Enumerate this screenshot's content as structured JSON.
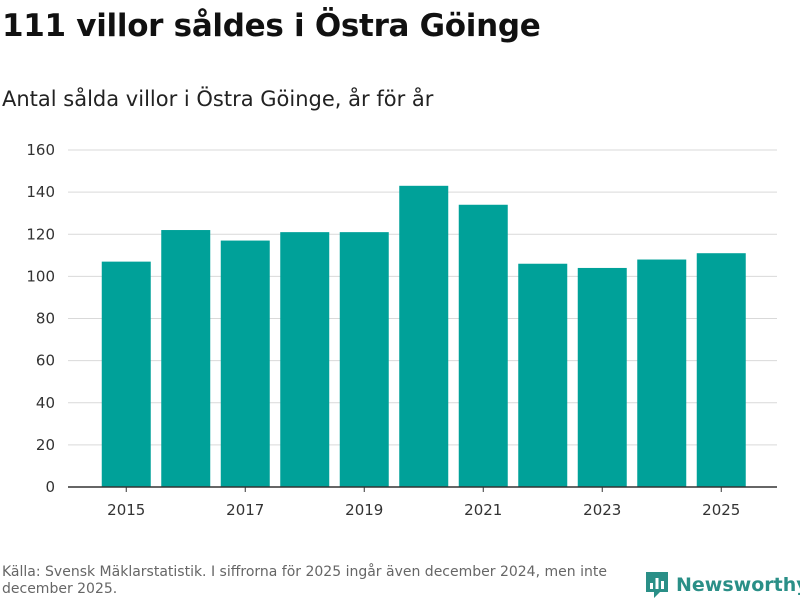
{
  "header": {
    "title": "111 villor såldes i Östra Göinge",
    "subtitle": "Antal sålda villor i Östra Göinge, år för år"
  },
  "footer": {
    "source": "Källa: Svensk Mäklarstatistik. I siffrorna för 2025 ingår även december 2024, men inte december 2025.",
    "brand": "Newsworthy"
  },
  "colors": {
    "bar": "#00a199",
    "brand": "#2a8f87"
  },
  "chart_data": {
    "type": "bar",
    "title": "Antal sålda villor i Östra Göinge, år för år",
    "xlabel": "",
    "ylabel": "",
    "categories": [
      "2015",
      "2016",
      "2017",
      "2018",
      "2019",
      "2020",
      "2021",
      "2022",
      "2023",
      "2024",
      "2025"
    ],
    "values": [
      107,
      122,
      117,
      121,
      121,
      143,
      134,
      106,
      104,
      108,
      111
    ],
    "xticks": [
      "2015",
      "2017",
      "2019",
      "2021",
      "2023",
      "2025"
    ],
    "yticks": [
      0,
      20,
      40,
      60,
      80,
      100,
      120,
      140,
      160
    ],
    "ylim": [
      0,
      160
    ],
    "grid": true
  }
}
